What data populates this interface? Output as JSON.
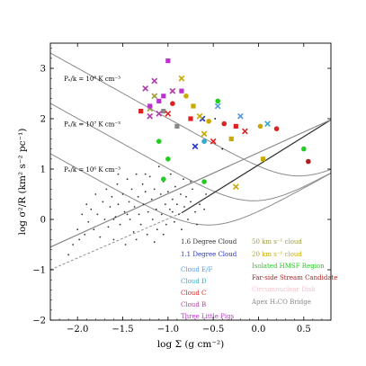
{
  "chart_data": {
    "type": "scatter",
    "title": "",
    "xlabel": "log Σ (g cm⁻²)",
    "ylabel": "log σ²/R (km² s⁻² pc⁻¹)",
    "xlim": [
      -2.3,
      0.8
    ],
    "ylim": [
      -2,
      3.5
    ],
    "xticks": [
      -2.0,
      -1.5,
      -1.0,
      -0.5,
      0.0,
      0.5
    ],
    "xtick_labels": [
      "−2.0",
      "−1.5",
      "−1.0",
      "−0.5",
      "0.0",
      "0.5"
    ],
    "yticks": [
      -2,
      -1,
      0,
      1,
      2,
      3
    ],
    "ytick_labels": [
      "−2",
      "−1",
      "0",
      "1",
      "2",
      "3"
    ],
    "grid": false,
    "pressure_curves": [
      {
        "label": "Pₑ/k = 10⁸ K cm⁻³",
        "log_p": 8,
        "label_x": -2.15,
        "label_y": 2.75
      },
      {
        "label": "Pₑ/k = 10⁷ K cm⁻³",
        "log_p": 7,
        "label_x": -2.15,
        "label_y": 1.85
      },
      {
        "label": "Pₑ/k = 10⁶ K cm⁻³",
        "log_p": 6,
        "label_x": -2.15,
        "label_y": 0.95
      }
    ],
    "reference_lines": [
      {
        "name": "virial",
        "style": "solid",
        "color": "#333333",
        "from": [
          -0.85,
          0.13
        ],
        "to": [
          0.8,
          1.98
        ]
      },
      {
        "name": "virial-ext",
        "style": "dashed",
        "color": "#888888",
        "from": [
          -2.3,
          -1.0
        ],
        "to": [
          -0.85,
          0.13
        ]
      },
      {
        "name": "Pe=10^5",
        "style": "solid",
        "color": "#888888",
        "from": [
          -2.3,
          -0.55
        ],
        "to": [
          0.8,
          1.98
        ]
      }
    ],
    "legend": {
      "position": "lower-right",
      "entries": [
        {
          "label": "1.6 Degree Cloud",
          "color": "#333333"
        },
        {
          "label": "1.1 Degree Cloud",
          "color": "#2233cc"
        },
        {
          "label": "50 km s⁻¹ cloud",
          "color": "#9b9b3b"
        },
        {
          "label": "20 km s⁻¹ cloud",
          "color": "#c9a800"
        },
        {
          "label": "Isolated HMSF Region",
          "color": "#22cc22"
        },
        {
          "label": "Far-side Stream Candidate",
          "color": "#aa2222"
        },
        {
          "label": "Circumnuclear Disk",
          "color": "#f2c4cc"
        },
        {
          "label": "Apex H₂CO Bridge",
          "color": "#888888"
        },
        {
          "label": "Cloud E/F",
          "color": "#5599dd"
        },
        {
          "label": "Cloud D",
          "color": "#33aacc"
        },
        {
          "label": "Cloud C",
          "color": "#dd2222"
        },
        {
          "label": "Cloud B",
          "color": "#b03aa8"
        },
        {
          "label": "Three Little Pigs",
          "color": "#bb33cc"
        }
      ]
    },
    "series": [
      {
        "name": "1.6 Degree Cloud",
        "color": "#333333",
        "marker": "dot",
        "points": [
          [
            -2.1,
            -0.7
          ],
          [
            -2.05,
            -0.5
          ],
          [
            -2.0,
            -0.2
          ],
          [
            -1.98,
            -0.4
          ],
          [
            -1.95,
            0.1
          ],
          [
            -1.92,
            -0.3
          ],
          [
            -1.9,
            0.3
          ],
          [
            -1.88,
            -0.05
          ],
          [
            -1.85,
            0.2
          ],
          [
            -1.82,
            -0.2
          ],
          [
            -1.8,
            0.5
          ],
          [
            -1.78,
            0.1
          ],
          [
            -1.75,
            -0.35
          ],
          [
            -1.72,
            0.35
          ],
          [
            -1.7,
            0.0
          ],
          [
            -1.68,
            0.6
          ],
          [
            -1.66,
            -0.15
          ],
          [
            -1.64,
            0.25
          ],
          [
            -1.62,
            0.45
          ],
          [
            -1.6,
            -0.4
          ],
          [
            -1.58,
            0.05
          ],
          [
            -1.56,
            0.7
          ],
          [
            -1.55,
            0.3
          ],
          [
            -1.53,
            -0.1
          ],
          [
            -1.5,
            0.5
          ],
          [
            -1.48,
            0.15
          ],
          [
            -1.47,
            -0.5
          ],
          [
            -1.45,
            0.8
          ],
          [
            -1.43,
            0.35
          ],
          [
            -1.42,
            0.0
          ],
          [
            -1.4,
            0.6
          ],
          [
            -1.38,
            -0.25
          ],
          [
            -1.37,
            0.25
          ],
          [
            -1.35,
            0.9
          ],
          [
            -1.33,
            0.45
          ],
          [
            -1.32,
            0.1
          ],
          [
            -1.3,
            -0.1
          ],
          [
            -1.28,
            0.7
          ],
          [
            -1.27,
            0.3
          ],
          [
            -1.25,
            0.55
          ],
          [
            -1.23,
            -0.3
          ],
          [
            -1.22,
            0.15
          ],
          [
            -1.2,
            0.85
          ],
          [
            -1.18,
            0.4
          ],
          [
            -1.17,
            0.0
          ],
          [
            -1.15,
            0.6
          ],
          [
            -1.13,
            0.2
          ],
          [
            -1.12,
            -0.2
          ],
          [
            -1.1,
            1.05
          ],
          [
            -1.08,
            0.5
          ],
          [
            -1.07,
            0.1
          ],
          [
            -1.05,
            0.75
          ],
          [
            -1.03,
            0.3
          ],
          [
            -1.02,
            -0.1
          ],
          [
            -1.0,
            0.55
          ],
          [
            -0.98,
            0.2
          ],
          [
            -0.97,
            0.9
          ],
          [
            -0.95,
            0.4
          ],
          [
            -0.93,
            -0.05
          ],
          [
            -0.92,
            0.65
          ],
          [
            -0.9,
            0.3
          ],
          [
            -0.88,
            0.1
          ],
          [
            -0.86,
            0.5
          ],
          [
            -0.85,
            -0.2
          ],
          [
            -0.83,
            0.8
          ],
          [
            -0.82,
            0.25
          ],
          [
            -0.8,
            0.45
          ],
          [
            -0.78,
            0.0
          ],
          [
            -0.75,
            0.35
          ],
          [
            -0.73,
            0.6
          ],
          [
            -0.7,
            0.15
          ],
          [
            -0.68,
            -0.1
          ],
          [
            -0.65,
            0.3
          ],
          [
            -0.6,
            0.2
          ],
          [
            -0.58,
            0.5
          ],
          [
            -1.15,
            -0.45
          ],
          [
            -1.35,
            -0.4
          ],
          [
            -1.55,
            0.9
          ],
          [
            -1.6,
            0.0
          ],
          [
            -1.45,
            0.1
          ],
          [
            -1.25,
            0.9
          ],
          [
            -1.05,
            -0.3
          ],
          [
            -0.95,
            0.15
          ],
          [
            -0.75,
            0.75
          ]
        ]
      },
      {
        "name": "1.1 Degree Cloud",
        "color": "#2233cc",
        "marker": "x",
        "points": [
          [
            -0.7,
            1.45
          ],
          [
            -0.62,
            2.0
          ]
        ]
      },
      {
        "name": "50 km s⁻¹ cloud",
        "color": "#9b9b3b",
        "marker": "x",
        "points": [
          [
            -1.2,
            2.2
          ],
          [
            -1.15,
            2.45
          ]
        ]
      },
      {
        "name": "20 km s⁻¹ cloud",
        "color": "#c9a800",
        "marker": "mixed",
        "points": [
          [
            -0.85,
            2.8
          ],
          [
            -0.8,
            2.45
          ],
          [
            -0.72,
            2.25
          ],
          [
            -0.65,
            2.05
          ],
          [
            -0.55,
            1.95
          ],
          [
            -0.3,
            1.6
          ],
          [
            -0.25,
            0.65
          ],
          [
            0.02,
            1.85
          ],
          [
            0.05,
            1.2
          ],
          [
            -0.6,
            1.7
          ]
        ]
      },
      {
        "name": "Isolated HMSF Region",
        "color": "#22cc22",
        "marker": "dot",
        "points": [
          [
            -1.1,
            1.55
          ],
          [
            -1.05,
            0.8
          ],
          [
            -1.0,
            1.2
          ],
          [
            -0.6,
            0.75
          ],
          [
            -0.45,
            2.35
          ],
          [
            0.5,
            1.4
          ]
        ]
      },
      {
        "name": "Far-side Stream Candidate",
        "color": "#aa2222",
        "marker": "dot",
        "points": [
          [
            0.55,
            1.15
          ]
        ]
      },
      {
        "name": "Apex H₂CO Bridge",
        "color": "#888888",
        "marker": "square",
        "points": [
          [
            -1.05,
            2.15
          ],
          [
            -0.9,
            1.85
          ]
        ]
      },
      {
        "name": "Cloud E/F",
        "color": "#5599dd",
        "marker": "x",
        "points": [
          [
            -0.2,
            2.05
          ],
          [
            -0.45,
            2.25
          ]
        ]
      },
      {
        "name": "Cloud D",
        "color": "#33aacc",
        "marker": "mixed",
        "points": [
          [
            0.1,
            1.9
          ],
          [
            -0.6,
            1.55
          ]
        ]
      },
      {
        "name": "Cloud C",
        "color": "#dd2222",
        "marker": "mixed",
        "points": [
          [
            -1.0,
            2.1
          ],
          [
            -0.95,
            2.3
          ],
          [
            -0.75,
            2.0
          ],
          [
            -0.5,
            1.55
          ],
          [
            -0.38,
            1.9
          ],
          [
            -0.25,
            1.85
          ],
          [
            -0.15,
            1.75
          ],
          [
            0.2,
            1.8
          ],
          [
            -1.3,
            2.15
          ]
        ]
      },
      {
        "name": "Cloud B",
        "color": "#b03aa8",
        "marker": "x",
        "points": [
          [
            -1.25,
            2.6
          ],
          [
            -1.2,
            2.05
          ],
          [
            -1.15,
            2.75
          ],
          [
            -1.1,
            2.1
          ],
          [
            -0.95,
            2.55
          ]
        ]
      },
      {
        "name": "Three Little Pigs",
        "color": "#bb33cc",
        "marker": "square",
        "points": [
          [
            -1.0,
            3.15
          ],
          [
            -0.85,
            2.55
          ],
          [
            -1.05,
            2.45
          ],
          [
            -1.1,
            2.35
          ],
          [
            -1.2,
            2.25
          ]
        ]
      },
      {
        "name": "1.6 Degree Cloud (hmsf)",
        "color": "#000000",
        "marker": "dot",
        "points": [
          [
            -0.48,
            2.0
          ],
          [
            -0.4,
            1.4
          ]
        ]
      }
    ]
  }
}
